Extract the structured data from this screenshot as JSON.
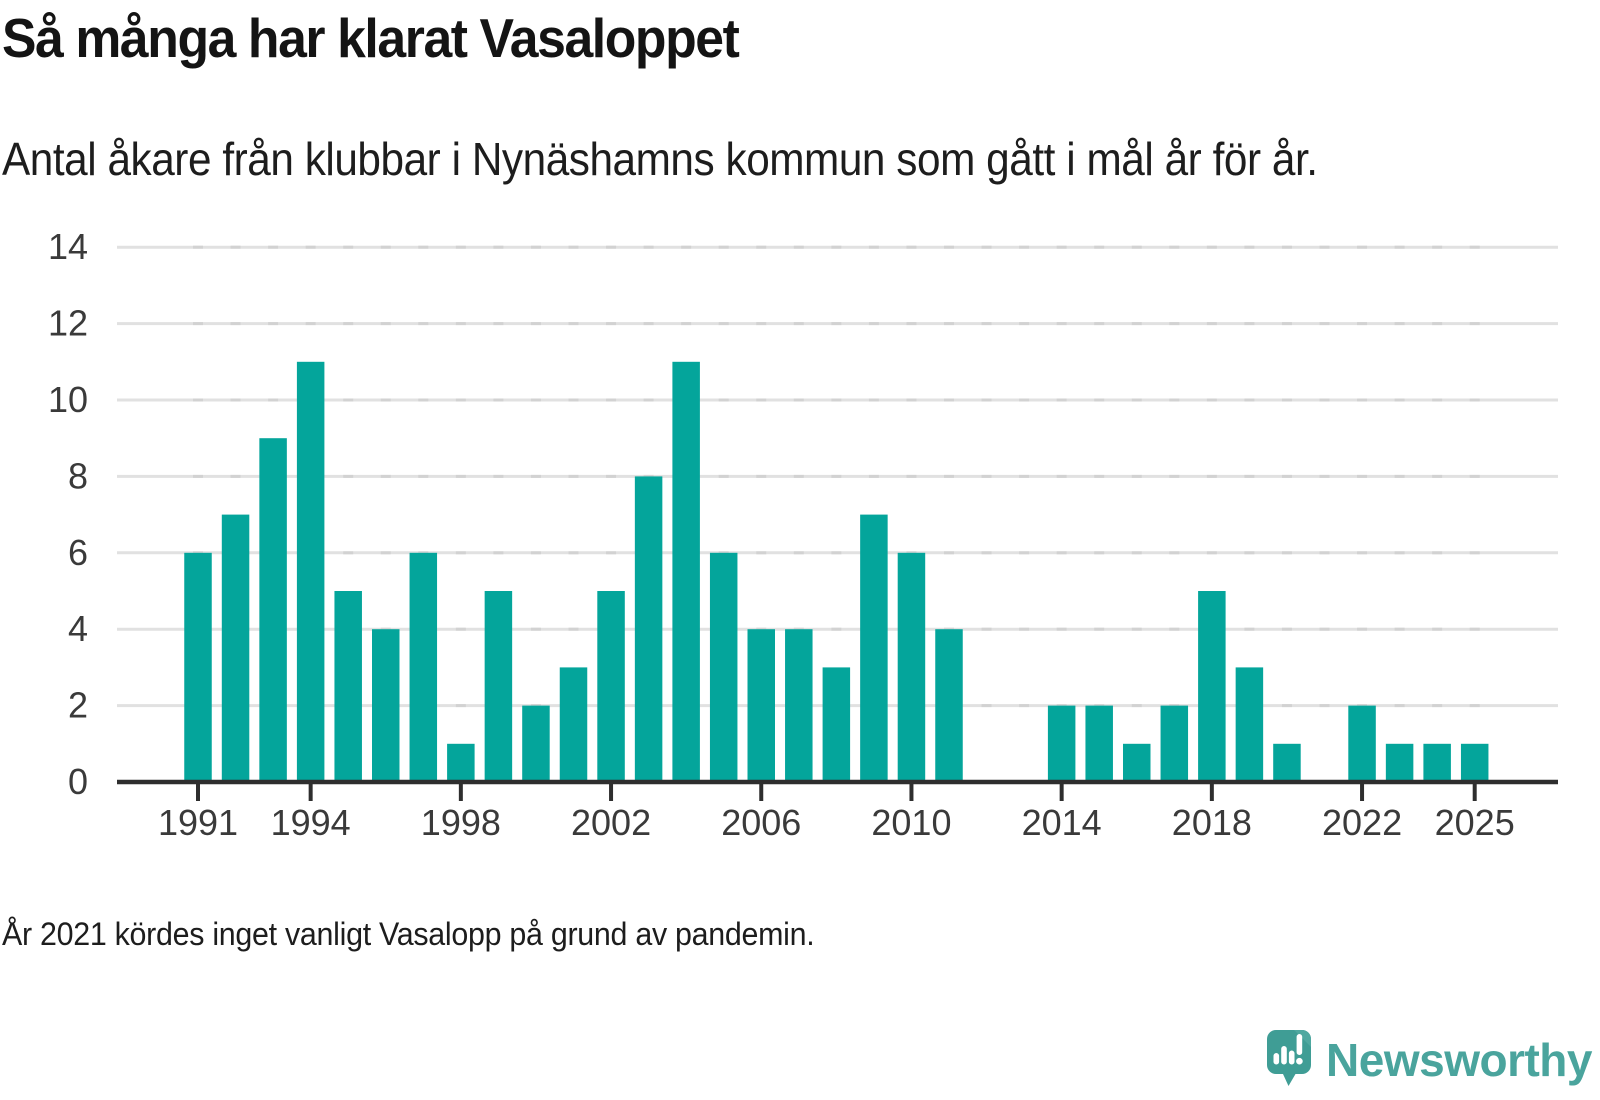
{
  "chart_data": {
    "type": "bar",
    "title": "Så många har klarat Vasaloppet",
    "subtitle": "Antal åkare från klubbar i Nynäshamns kommun som gått i mål år för år.",
    "footnote": "År 2021 kördes inget vanligt Vasalopp på grund av pandemin.",
    "x": [
      1991,
      1992,
      1993,
      1994,
      1995,
      1996,
      1997,
      1998,
      1999,
      2000,
      2001,
      2002,
      2003,
      2004,
      2005,
      2006,
      2007,
      2008,
      2009,
      2010,
      2011,
      2012,
      2013,
      2014,
      2015,
      2016,
      2017,
      2018,
      2019,
      2020,
      2021,
      2022,
      2023,
      2024,
      2025
    ],
    "values": [
      6,
      7,
      9,
      11,
      5,
      4,
      6,
      1,
      5,
      2,
      3,
      5,
      8,
      11,
      6,
      4,
      4,
      3,
      7,
      6,
      4,
      0,
      0,
      2,
      2,
      1,
      2,
      5,
      3,
      1,
      0,
      2,
      1,
      1,
      1
    ],
    "years_without_bar": [
      2012,
      2013,
      2021
    ],
    "xticks": [
      1991,
      1994,
      1998,
      2002,
      2006,
      2010,
      2014,
      2018,
      2022,
      2025
    ],
    "yticks": [
      0,
      2,
      4,
      6,
      8,
      10,
      12,
      14
    ],
    "ylim": [
      0,
      14
    ],
    "xlabel": "",
    "ylabel": "",
    "grid": true,
    "legend": null,
    "bar_color": "#04a59b",
    "gridline_color": "#e1e1e1",
    "grid_dash_color": "#d2d2d2",
    "axis_color": "#2e2e2e",
    "label_color": "#3a3a3a"
  },
  "logo": {
    "brand": "Newsworthy",
    "icon": "newsworthy-speech-bubble-chart-icon",
    "brand_color": "#4aa49d",
    "icon_color": "#3f9d95"
  }
}
